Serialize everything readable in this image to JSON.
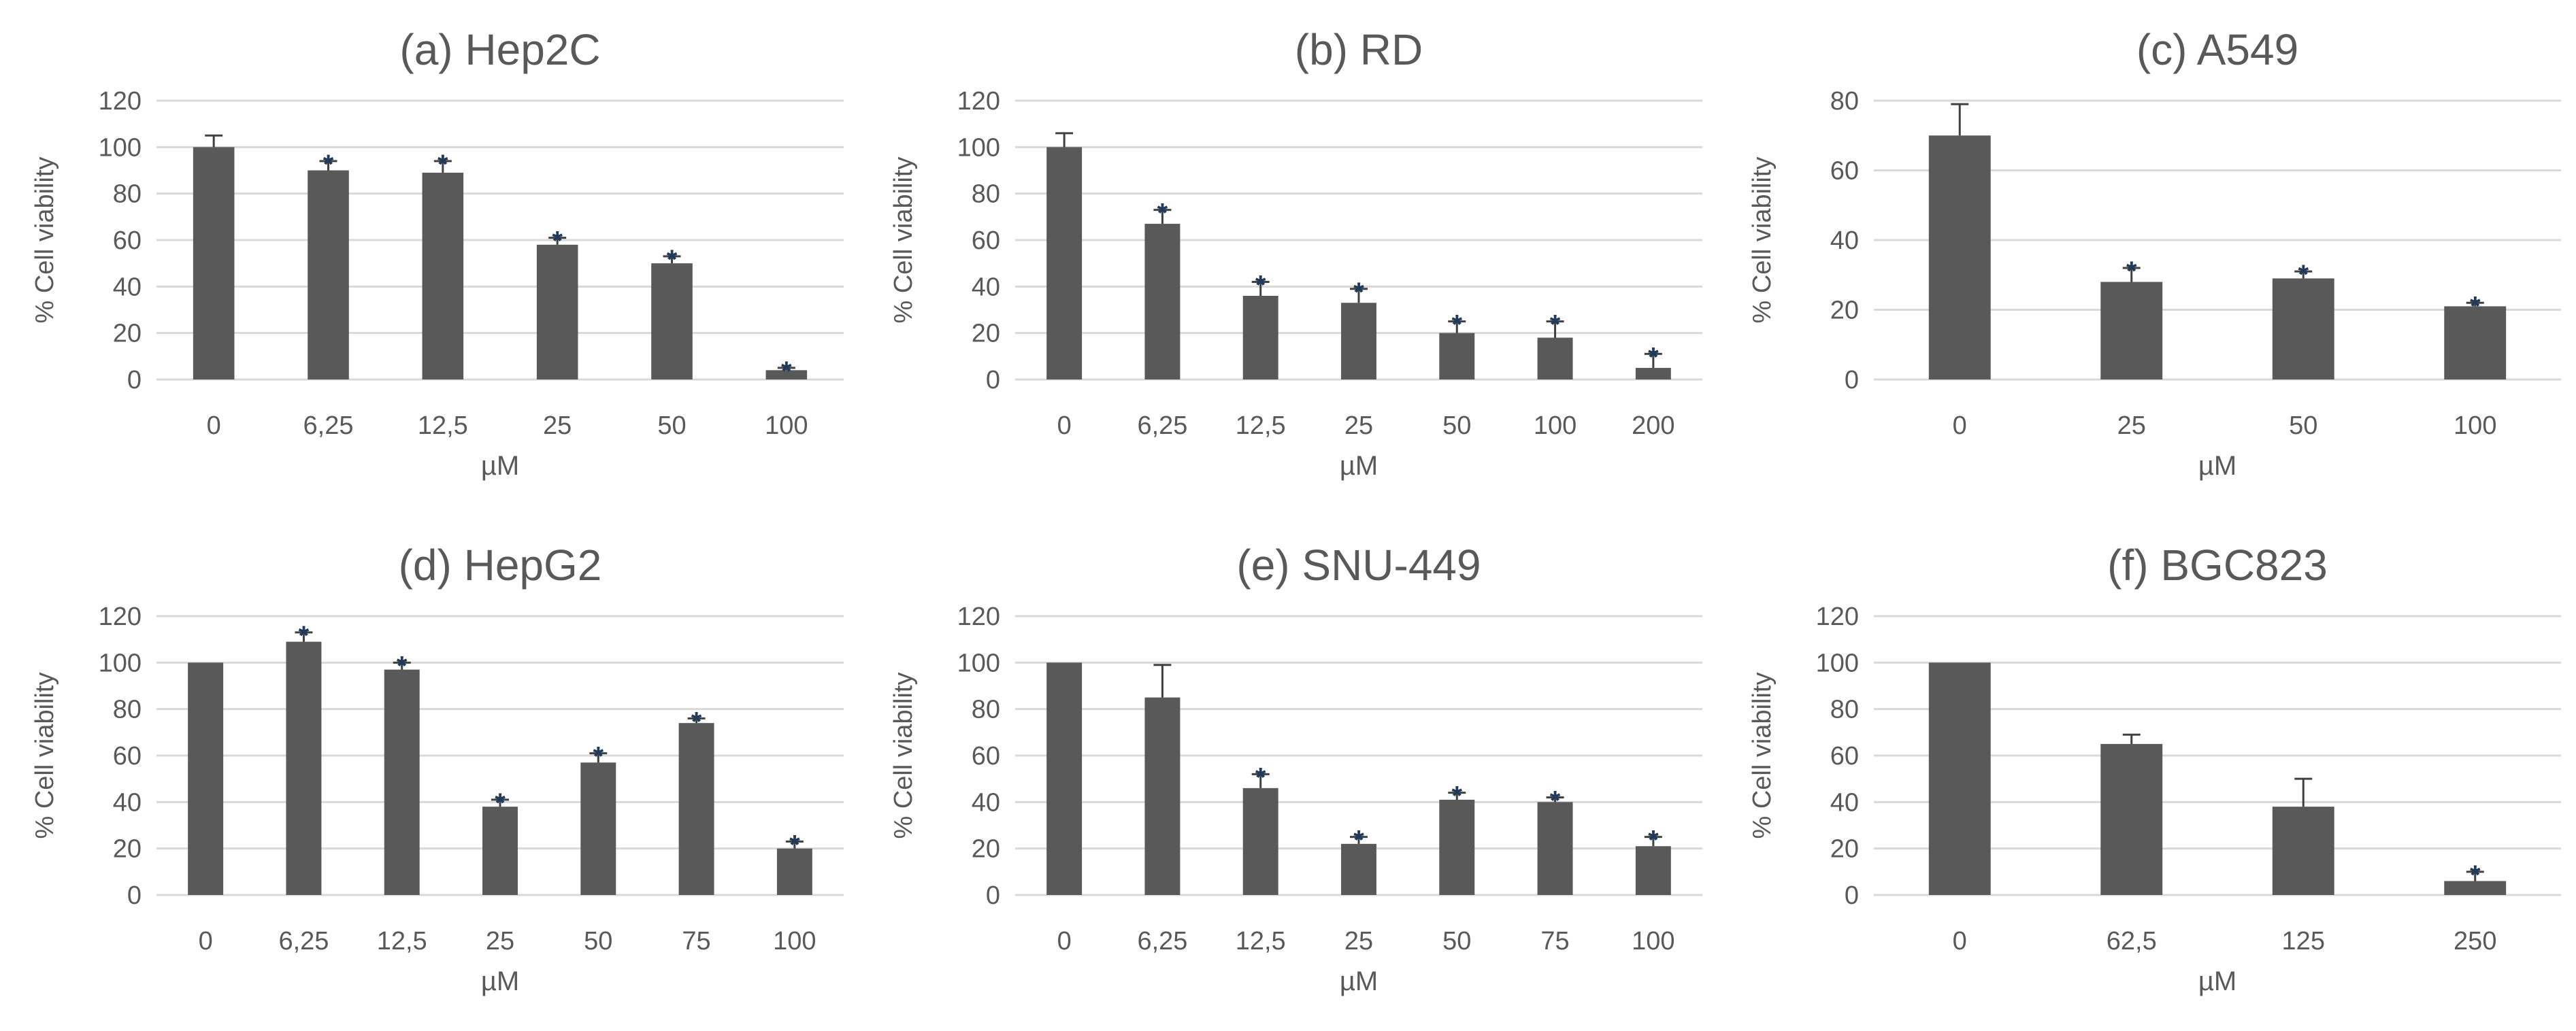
{
  "colors": {
    "bar": "#595959",
    "grid": "#d9d9d9",
    "text": "#595959",
    "star": "#1f3a5a",
    "error": "#404040"
  },
  "chart_data": [
    {
      "type": "bar",
      "title": "(a) Hep2C",
      "xlabel": "µM",
      "ylabel": "% Cell viability",
      "categories": [
        "0",
        "6,25",
        "12,5",
        "25",
        "50",
        "100"
      ],
      "values": [
        100,
        90,
        89,
        58,
        50,
        4
      ],
      "errors": [
        5,
        4,
        5,
        3,
        3,
        1
      ],
      "significant": [
        false,
        true,
        true,
        true,
        true,
        true
      ],
      "ylim": [
        0,
        120
      ],
      "yticks": [
        0,
        20,
        40,
        60,
        80,
        100,
        120
      ]
    },
    {
      "type": "bar",
      "title": "(b) RD",
      "xlabel": "µM",
      "ylabel": "% Cell viability",
      "categories": [
        "0",
        "6,25",
        "12,5",
        "25",
        "50",
        "100",
        "200"
      ],
      "values": [
        100,
        67,
        36,
        33,
        20,
        18,
        5
      ],
      "errors": [
        6,
        6,
        6,
        6,
        5,
        7,
        6
      ],
      "significant": [
        false,
        true,
        true,
        true,
        true,
        true,
        true
      ],
      "ylim": [
        0,
        120
      ],
      "yticks": [
        0,
        20,
        40,
        60,
        80,
        100,
        120
      ]
    },
    {
      "type": "bar",
      "title": "(c) A549",
      "xlabel": "µM",
      "ylabel": "% Cell viability",
      "categories": [
        "0",
        "25",
        "50",
        "100"
      ],
      "values": [
        70,
        28,
        29,
        21
      ],
      "errors": [
        9,
        4,
        2,
        1
      ],
      "significant": [
        false,
        true,
        true,
        true
      ],
      "ylim": [
        0,
        80
      ],
      "yticks": [
        0,
        20,
        40,
        60,
        80
      ]
    },
    {
      "type": "bar",
      "title": "(d) HepG2",
      "xlabel": "µM",
      "ylabel": "% Cell viability",
      "categories": [
        "0",
        "6,25",
        "12,5",
        "25",
        "50",
        "75",
        "100"
      ],
      "values": [
        100,
        109,
        97,
        38,
        57,
        74,
        20
      ],
      "errors": [
        0,
        4,
        3,
        3,
        4,
        2,
        3
      ],
      "significant": [
        false,
        true,
        true,
        true,
        true,
        true,
        true
      ],
      "ylim": [
        0,
        120
      ],
      "yticks": [
        0,
        20,
        40,
        60,
        80,
        100,
        120
      ]
    },
    {
      "type": "bar",
      "title": "(e) SNU-449",
      "xlabel": "µM",
      "ylabel": "% Cell viability",
      "categories": [
        "0",
        "6,25",
        "12,5",
        "25",
        "50",
        "75",
        "100"
      ],
      "values": [
        100,
        85,
        46,
        22,
        41,
        40,
        21
      ],
      "errors": [
        0,
        14,
        6,
        3,
        3,
        2,
        4
      ],
      "significant": [
        false,
        false,
        true,
        true,
        true,
        true,
        true
      ],
      "ylim": [
        0,
        120
      ],
      "yticks": [
        0,
        20,
        40,
        60,
        80,
        100,
        120
      ]
    },
    {
      "type": "bar",
      "title": "(f) BGC823",
      "xlabel": "µM",
      "ylabel": "% Cell viability",
      "categories": [
        "0",
        "62,5",
        "125",
        "250"
      ],
      "values": [
        100,
        65,
        38,
        6
      ],
      "errors": [
        0,
        4,
        12,
        4
      ],
      "significant": [
        false,
        false,
        false,
        true
      ],
      "ylim": [
        0,
        120
      ],
      "yticks": [
        0,
        20,
        40,
        60,
        80,
        100,
        120
      ]
    }
  ]
}
